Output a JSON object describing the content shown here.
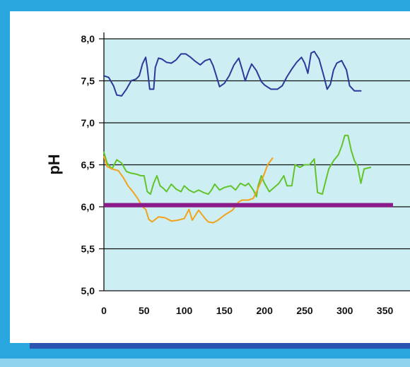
{
  "chart_data": {
    "type": "line",
    "ylabel": "pH",
    "xlabel": "",
    "xlim": [
      0,
      350
    ],
    "ylim": [
      5.0,
      8.0
    ],
    "x_ticks": [
      "0",
      "50",
      "100",
      "150",
      "200",
      "250",
      "300",
      "350"
    ],
    "y_ticks": [
      "5,0",
      "5,5",
      "6,0",
      "6,5",
      "7,0",
      "7,5",
      "8,0"
    ],
    "grid": "horizontal",
    "reference_line": {
      "y": 6.02,
      "x_range": [
        0,
        360
      ],
      "color": "#8b1a8b"
    },
    "series": [
      {
        "color": "#2b3a9a",
        "points": [
          [
            0,
            7.56
          ],
          [
            6,
            7.54
          ],
          [
            12,
            7.44
          ],
          [
            16,
            7.33
          ],
          [
            22,
            7.32
          ],
          [
            28,
            7.4
          ],
          [
            34,
            7.5
          ],
          [
            40,
            7.52
          ],
          [
            44,
            7.56
          ],
          [
            48,
            7.7
          ],
          [
            52,
            7.78
          ],
          [
            54,
            7.66
          ],
          [
            57,
            7.4
          ],
          [
            62,
            7.4
          ],
          [
            64,
            7.66
          ],
          [
            68,
            7.77
          ],
          [
            72,
            7.76
          ],
          [
            78,
            7.72
          ],
          [
            84,
            7.71
          ],
          [
            90,
            7.75
          ],
          [
            96,
            7.82
          ],
          [
            102,
            7.82
          ],
          [
            108,
            7.78
          ],
          [
            114,
            7.73
          ],
          [
            120,
            7.69
          ],
          [
            126,
            7.74
          ],
          [
            132,
            7.76
          ],
          [
            136,
            7.68
          ],
          [
            140,
            7.56
          ],
          [
            144,
            7.43
          ],
          [
            150,
            7.47
          ],
          [
            156,
            7.56
          ],
          [
            162,
            7.69
          ],
          [
            168,
            7.77
          ],
          [
            172,
            7.64
          ],
          [
            176,
            7.5
          ],
          [
            180,
            7.61
          ],
          [
            184,
            7.7
          ],
          [
            190,
            7.62
          ],
          [
            196,
            7.49
          ],
          [
            200,
            7.45
          ],
          [
            208,
            7.4
          ],
          [
            216,
            7.4
          ],
          [
            222,
            7.44
          ],
          [
            228,
            7.55
          ],
          [
            234,
            7.64
          ],
          [
            240,
            7.72
          ],
          [
            246,
            7.78
          ],
          [
            250,
            7.71
          ],
          [
            254,
            7.59
          ],
          [
            258,
            7.83
          ],
          [
            262,
            7.85
          ],
          [
            268,
            7.76
          ],
          [
            274,
            7.55
          ],
          [
            278,
            7.4
          ],
          [
            282,
            7.46
          ],
          [
            286,
            7.63
          ],
          [
            290,
            7.71
          ],
          [
            296,
            7.74
          ],
          [
            302,
            7.63
          ],
          [
            306,
            7.44
          ],
          [
            312,
            7.38
          ],
          [
            320,
            7.38
          ]
        ]
      },
      {
        "color": "#62c42a",
        "points": [
          [
            0,
            6.65
          ],
          [
            4,
            6.52
          ],
          [
            10,
            6.45
          ],
          [
            16,
            6.56
          ],
          [
            22,
            6.52
          ],
          [
            28,
            6.42
          ],
          [
            34,
            6.4
          ],
          [
            40,
            6.39
          ],
          [
            46,
            6.37
          ],
          [
            50,
            6.37
          ],
          [
            54,
            6.18
          ],
          [
            58,
            6.15
          ],
          [
            62,
            6.28
          ],
          [
            66,
            6.37
          ],
          [
            70,
            6.25
          ],
          [
            74,
            6.22
          ],
          [
            78,
            6.18
          ],
          [
            84,
            6.27
          ],
          [
            90,
            6.21
          ],
          [
            96,
            6.18
          ],
          [
            100,
            6.25
          ],
          [
            106,
            6.2
          ],
          [
            112,
            6.17
          ],
          [
            118,
            6.2
          ],
          [
            124,
            6.17
          ],
          [
            130,
            6.15
          ],
          [
            134,
            6.2
          ],
          [
            138,
            6.27
          ],
          [
            144,
            6.2
          ],
          [
            150,
            6.23
          ],
          [
            158,
            6.25
          ],
          [
            164,
            6.2
          ],
          [
            170,
            6.28
          ],
          [
            176,
            6.25
          ],
          [
            180,
            6.28
          ],
          [
            186,
            6.2
          ],
          [
            190,
            6.12
          ],
          [
            192,
            6.25
          ],
          [
            196,
            6.37
          ],
          [
            200,
            6.28
          ],
          [
            206,
            6.18
          ],
          [
            212,
            6.23
          ],
          [
            218,
            6.28
          ],
          [
            224,
            6.37
          ],
          [
            228,
            6.25
          ],
          [
            234,
            6.25
          ],
          [
            238,
            6.5
          ],
          [
            244,
            6.47
          ],
          [
            250,
            6.5
          ],
          [
            256,
            6.5
          ],
          [
            262,
            6.57
          ],
          [
            266,
            6.17
          ],
          [
            272,
            6.15
          ],
          [
            276,
            6.3
          ],
          [
            280,
            6.45
          ],
          [
            286,
            6.55
          ],
          [
            292,
            6.62
          ],
          [
            296,
            6.72
          ],
          [
            300,
            6.85
          ],
          [
            304,
            6.85
          ],
          [
            308,
            6.67
          ],
          [
            312,
            6.55
          ],
          [
            316,
            6.48
          ],
          [
            320,
            6.28
          ],
          [
            324,
            6.45
          ],
          [
            332,
            6.47
          ]
        ]
      },
      {
        "color": "#f2a21b",
        "points": [
          [
            0,
            6.6
          ],
          [
            4,
            6.48
          ],
          [
            10,
            6.45
          ],
          [
            18,
            6.43
          ],
          [
            24,
            6.35
          ],
          [
            30,
            6.25
          ],
          [
            36,
            6.18
          ],
          [
            42,
            6.1
          ],
          [
            48,
            6.0
          ],
          [
            52,
            5.97
          ],
          [
            56,
            5.85
          ],
          [
            60,
            5.82
          ],
          [
            68,
            5.88
          ],
          [
            76,
            5.87
          ],
          [
            84,
            5.83
          ],
          [
            92,
            5.84
          ],
          [
            100,
            5.86
          ],
          [
            106,
            5.97
          ],
          [
            110,
            5.84
          ],
          [
            118,
            5.96
          ],
          [
            126,
            5.86
          ],
          [
            130,
            5.82
          ],
          [
            136,
            5.81
          ],
          [
            142,
            5.84
          ],
          [
            150,
            5.9
          ],
          [
            160,
            5.96
          ],
          [
            168,
            6.06
          ],
          [
            172,
            6.08
          ],
          [
            180,
            6.08
          ],
          [
            186,
            6.1
          ],
          [
            192,
            6.22
          ],
          [
            198,
            6.35
          ],
          [
            204,
            6.5
          ],
          [
            210,
            6.58
          ]
        ]
      }
    ]
  }
}
